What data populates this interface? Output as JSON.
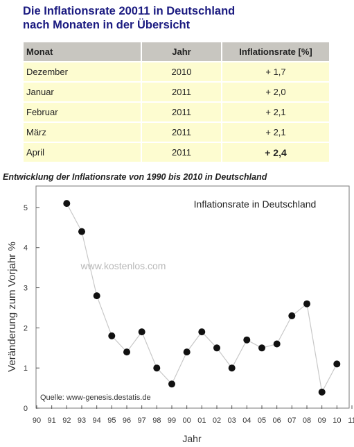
{
  "header": {
    "title_line1": "Die Inflationsrate 20011 in Deutschland",
    "title_line2": "nach Monaten in der Übersicht"
  },
  "table": {
    "columns": [
      "Monat",
      "Jahr",
      "Inflationsrate [%]"
    ],
    "rows": [
      [
        "Dezember",
        "2010",
        "+ 1,7"
      ],
      [
        "Januar",
        "2011",
        "+ 2,0"
      ],
      [
        "Februar",
        "2011",
        "+ 2,1"
      ],
      [
        "März",
        "2011",
        "+ 2,1"
      ],
      [
        "April",
        "2011",
        "+ 2,4"
      ]
    ],
    "highlight_row": 4,
    "colors": {
      "header_bg": "#c8c6c0",
      "row_bg": "#fdfcd0",
      "highlight_text": "#1a1a9a",
      "title": "#1a1a80"
    }
  },
  "subtitle": "Entwicklung der Inflationsrate von 1990 bis 2010 in Deutschland",
  "chart_data": {
    "type": "scatter",
    "title": "Inflationsrate in Deutschland",
    "xlabel": "Jahr",
    "ylabel": "Veränderung zum Vorjahr %",
    "watermark": "www.kostenlos.com",
    "source": "Quelle: www-genesis.destatis.de",
    "x_ticks": [
      "90",
      "91",
      "92",
      "93",
      "94",
      "95",
      "96",
      "97",
      "98",
      "99",
      "00",
      "01",
      "02",
      "03",
      "04",
      "05",
      "06",
      "07",
      "08",
      "09",
      "10",
      "11"
    ],
    "y_ticks": [
      "0",
      "1",
      "2",
      "3",
      "4",
      "5"
    ],
    "xlim": [
      0,
      21
    ],
    "ylim": [
      0,
      5.5
    ],
    "grid": false,
    "points_connected": true,
    "series": [
      {
        "x": [
          "92",
          "93",
          "94",
          "95",
          "96",
          "97",
          "98",
          "99",
          "00",
          "01",
          "02",
          "03",
          "04",
          "05",
          "06",
          "07",
          "08",
          "09",
          "10"
        ],
        "values": [
          5.1,
          4.4,
          2.8,
          1.8,
          1.4,
          1.9,
          1.0,
          0.6,
          1.4,
          1.9,
          1.5,
          1.0,
          1.7,
          1.5,
          1.6,
          2.3,
          2.6,
          0.4,
          1.1
        ]
      }
    ]
  }
}
